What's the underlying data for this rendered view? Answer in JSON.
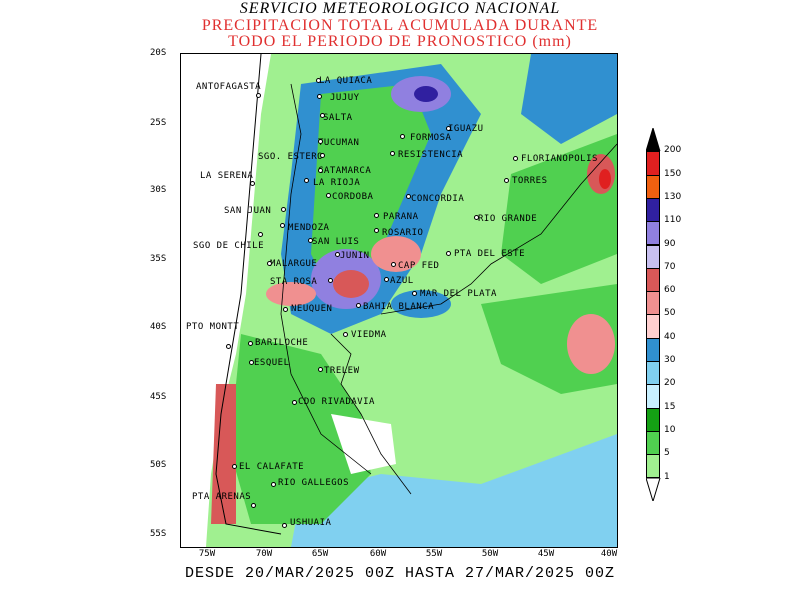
{
  "header": {
    "line1": "SERVICIO METEOROLOGICO NACIONAL",
    "line2": "PRECIPITACION TOTAL ACUMULADA DURANTE",
    "line3": "TODO EL PERIODO DE PRONOSTICO (mm)"
  },
  "footer": "DESDE 20/MAR/2025 00Z HASTA 27/MAR/2025 00Z",
  "axes": {
    "lat_labels": [
      "20S",
      "25S",
      "30S",
      "35S",
      "40S",
      "45S",
      "50S",
      "55S"
    ],
    "lon_labels": [
      "75W",
      "70W",
      "65W",
      "60W",
      "55W",
      "50W",
      "45W",
      "40W"
    ]
  },
  "legend": {
    "levels": [
      "1",
      "5",
      "10",
      "15",
      "20",
      "30",
      "40",
      "50",
      "60",
      "70",
      "90",
      "110",
      "130",
      "150",
      "200"
    ],
    "colors": [
      "#ffffff",
      "#a0f090",
      "#50d050",
      "#14a014",
      "#c8f0ff",
      "#80d0f0",
      "#3090d0",
      "#ffd0d0",
      "#f09090",
      "#d85858",
      "#c8c0f0",
      "#9080e0",
      "#3020a0",
      "#f06010",
      "#e02020",
      "#000000"
    ]
  },
  "cities": [
    {
      "name": "ANTOFAGASTA"
    },
    {
      "name": "LA QUIACA"
    },
    {
      "name": "JUJUY"
    },
    {
      "name": "SALTA"
    },
    {
      "name": "IGUAZU"
    },
    {
      "name": "TUCUMAN"
    },
    {
      "name": "FORMOSA"
    },
    {
      "name": "SGO. ESTERO"
    },
    {
      "name": "RESISTENCIA"
    },
    {
      "name": "FLORIANOPOLIS"
    },
    {
      "name": "CATAMARCA"
    },
    {
      "name": "LA SERENA"
    },
    {
      "name": "LA RIOJA"
    },
    {
      "name": "TORRES"
    },
    {
      "name": "CORDOBA"
    },
    {
      "name": "CONCORDIA"
    },
    {
      "name": "SAN JUAN"
    },
    {
      "name": "PARANA"
    },
    {
      "name": "RIO GRANDE"
    },
    {
      "name": "MENDOZA"
    },
    {
      "name": "ROSARIO"
    },
    {
      "name": "SAN LUIS"
    },
    {
      "name": "SGO DE CHILE"
    },
    {
      "name": "PTA DEL ESTE"
    },
    {
      "name": "JUNIN"
    },
    {
      "name": "MALARGUE"
    },
    {
      "name": "CAP FED"
    },
    {
      "name": "AZUL"
    },
    {
      "name": "STA ROSA"
    },
    {
      "name": "MAR DEL PLATA"
    },
    {
      "name": "BAHIA BLANCA"
    },
    {
      "name": "NEUQUEN"
    },
    {
      "name": "PTO MONTT"
    },
    {
      "name": "VIEDMA"
    },
    {
      "name": "BARILOCHE"
    },
    {
      "name": "ESQUEL"
    },
    {
      "name": "TRELEW"
    },
    {
      "name": "CDO RIVADAVIA"
    },
    {
      "name": "EL CALAFATE"
    },
    {
      "name": "RIO GALLEGOS"
    },
    {
      "name": "PTA ARENAS"
    },
    {
      "name": "USHUAIA"
    }
  ]
}
